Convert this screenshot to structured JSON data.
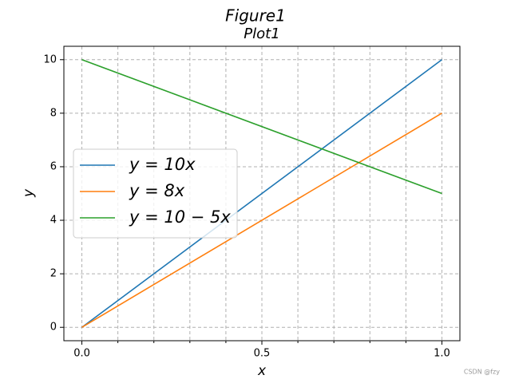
{
  "chart_data": {
    "type": "line",
    "title": "Figure1",
    "subtitle": "Plot1",
    "x_label": "x",
    "y_label": "y",
    "x": [
      0,
      1
    ],
    "series": [
      {
        "name": "y = 10x",
        "color": "#1f77b4",
        "values": [
          0,
          10
        ]
      },
      {
        "name": "y = 8x",
        "color": "#ff7f0e",
        "values": [
          0,
          8
        ]
      },
      {
        "name": "y = 10 − 5x",
        "color": "#2ca02c",
        "values": [
          10,
          5
        ]
      }
    ],
    "xlim": [
      -0.05,
      1.05
    ],
    "ylim": [
      -0.5,
      10.5
    ],
    "xticks": [
      {
        "value": 0,
        "label": "0.0"
      },
      {
        "value": 0.5,
        "label": "0.5"
      },
      {
        "value": 1,
        "label": "1.0"
      }
    ],
    "xminorticks": [
      0.1,
      0.2,
      0.3,
      0.4,
      0.6,
      0.7,
      0.8,
      0.9
    ],
    "yticks": [
      0,
      2,
      4,
      6,
      8,
      10
    ],
    "grid": true,
    "legend": "left",
    "watermark": "CSDN @fzy"
  }
}
